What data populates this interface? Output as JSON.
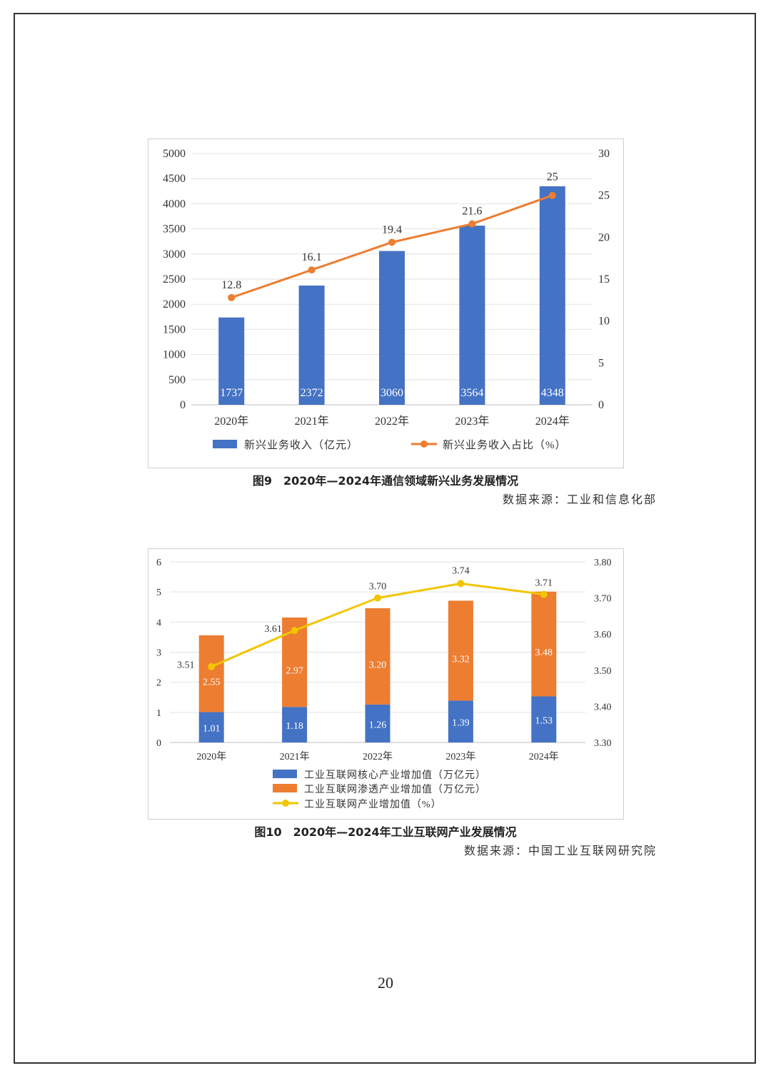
{
  "page_number": "20",
  "figures": [
    {
      "caption": "图9　2020年—2024年通信领域新兴业务发展情况",
      "source": "数据来源：工业和信息化部"
    },
    {
      "caption": "图10　2020年—2024年工业互联网产业发展情况",
      "source": "数据来源：中国工业互联网研究院"
    }
  ],
  "chart_data": [
    {
      "type": "bar",
      "categories": [
        "2020年",
        "2021年",
        "2022年",
        "2023年",
        "2024年"
      ],
      "series": [
        {
          "name": "新兴业务收入（亿元）",
          "type": "bar",
          "axis": "left",
          "values": [
            1737,
            2372,
            3060,
            3564,
            4348
          ],
          "labels": [
            "1737",
            "2372",
            "3060",
            "3564",
            "4348"
          ],
          "color": "#4472C4"
        },
        {
          "name": "新兴业务收入占比（%）",
          "type": "line",
          "axis": "right",
          "values": [
            12.8,
            16.1,
            19.4,
            21.6,
            25
          ],
          "labels": [
            "12.8",
            "16.1",
            "19.4",
            "21.6",
            "25"
          ],
          "color": "#ED7D31"
        }
      ],
      "ylim_left": [
        0,
        5000
      ],
      "yticks_left": [
        "0",
        "500",
        "1000",
        "1500",
        "2000",
        "2500",
        "3000",
        "3500",
        "4000",
        "4500",
        "5000"
      ],
      "ylim_right": [
        0,
        30
      ],
      "yticks_right": [
        "0",
        "5",
        "10",
        "15",
        "20",
        "25",
        "30"
      ],
      "grid": true,
      "legend": "bottom"
    },
    {
      "type": "bar",
      "stacked": true,
      "categories": [
        "2020年",
        "2021年",
        "2022年",
        "2023年",
        "2024年"
      ],
      "series": [
        {
          "name": "工业互联网核心产业增加值（万亿元）",
          "type": "bar",
          "axis": "left",
          "values": [
            1.01,
            1.18,
            1.26,
            1.39,
            1.53
          ],
          "labels": [
            "1.01",
            "1.18",
            "1.26",
            "1.39",
            "1.53"
          ],
          "color": "#4472C4"
        },
        {
          "name": "工业互联网渗透产业增加值（万亿元）",
          "type": "bar",
          "axis": "left",
          "values": [
            2.55,
            2.97,
            3.2,
            3.32,
            3.48
          ],
          "labels": [
            "2.55",
            "2.97",
            "3.20",
            "3.32",
            "3.48"
          ],
          "color": "#ED7D31"
        },
        {
          "name": "工业互联网产业增加值（%）",
          "type": "line",
          "axis": "right",
          "values": [
            3.51,
            3.61,
            3.7,
            3.74,
            3.71
          ],
          "labels": [
            "3.51",
            "3.61",
            "3.70",
            "3.74",
            "3.71"
          ],
          "color": "#F2C500"
        }
      ],
      "ylim_left": [
        0,
        6
      ],
      "yticks_left": [
        "0",
        "1",
        "2",
        "3",
        "4",
        "5",
        "6"
      ],
      "ylim_right": [
        3.3,
        3.8
      ],
      "yticks_right": [
        "3.30",
        "3.40",
        "3.50",
        "3.60",
        "3.70",
        "3.80"
      ],
      "grid": true,
      "legend": "bottom"
    }
  ]
}
